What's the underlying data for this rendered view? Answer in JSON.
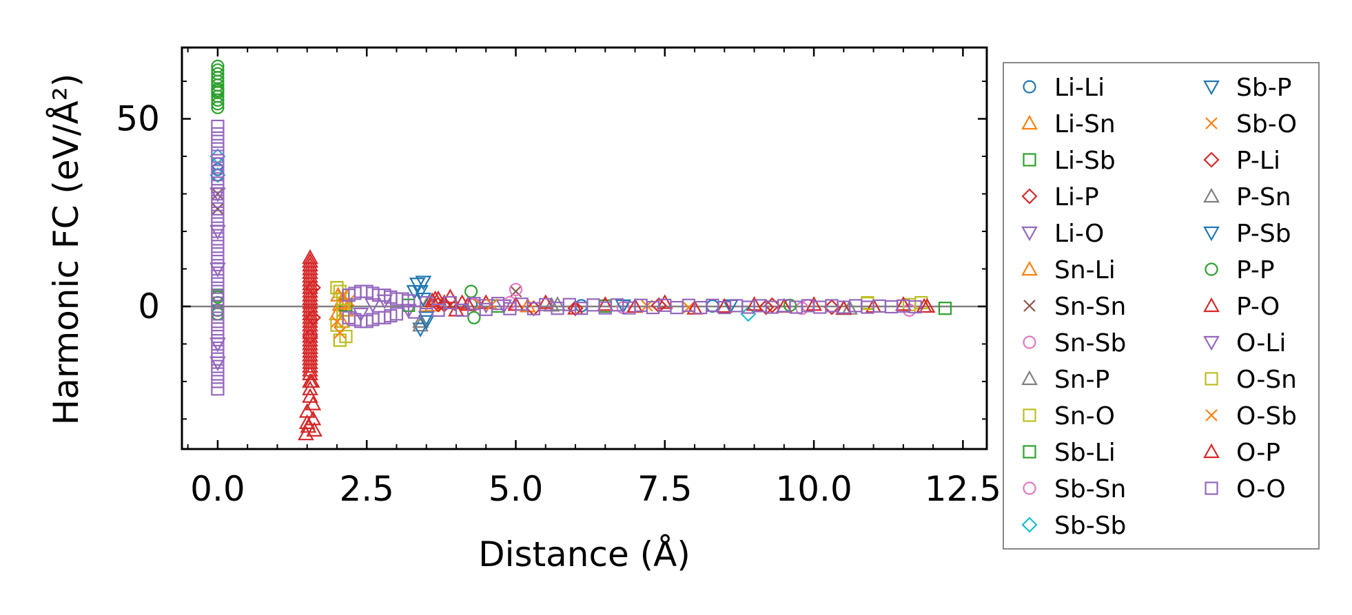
{
  "chart_data": {
    "type": "scatter",
    "title": "",
    "xlabel": "Distance (Å)",
    "ylabel": "Harmonic FC (eV/Å²)",
    "xlim": [
      -0.6,
      12.9
    ],
    "ylim": [
      -38,
      69
    ],
    "x_ticks": [
      0.0,
      2.5,
      5.0,
      7.5,
      10.0,
      12.5
    ],
    "x_tick_labels": [
      "0.0",
      "2.5",
      "5.0",
      "7.5",
      "10.0",
      "12.5"
    ],
    "y_ticks": [
      0,
      50
    ],
    "y_tick_labels": [
      "0",
      "50"
    ],
    "reference_line_y": 0,
    "legend_position": "outside-right",
    "series": [
      {
        "name": "Li-Li",
        "marker": "circle",
        "color": "#1f77b4",
        "x": [
          0.0,
          0.0,
          0.0,
          4.25,
          6.1,
          8.3
        ],
        "y": [
          38.0,
          35.0,
          36.5,
          0.5,
          0.2,
          0.1
        ]
      },
      {
        "name": "Li-Sn",
        "marker": "triangle-up",
        "color": "#ff7f0e",
        "x": [
          2.0,
          2.05,
          2.1,
          2.15,
          3.6,
          5.2
        ],
        "y": [
          -2.0,
          0.5,
          2.0,
          -1.0,
          0.3,
          0.1
        ]
      },
      {
        "name": "Li-Sb",
        "marker": "square",
        "color": "#2ca02c",
        "x": [
          12.2,
          0.0,
          2.15,
          4.7
        ],
        "y": [
          -0.5,
          2.0,
          0.4,
          0.1
        ]
      },
      {
        "name": "Li-P",
        "marker": "diamond",
        "color": "#d62728",
        "x": [
          1.6,
          1.55,
          3.7,
          5.3,
          7.4,
          9.2
        ],
        "y": [
          5.0,
          -8.0,
          0.5,
          -0.5,
          0.3,
          -0.2
        ]
      },
      {
        "name": "Li-O",
        "marker": "triangle-down",
        "color": "#9467bd",
        "x": [
          0.0,
          0.0,
          2.6,
          3.2,
          4.8
        ],
        "y": [
          30.0,
          -15.0,
          0.5,
          -1.0,
          0.2
        ]
      },
      {
        "name": "Sn-Li",
        "marker": "triangle-up",
        "color": "#ff7f0e",
        "x": [
          2.02,
          2.08,
          2.12,
          3.5
        ],
        "y": [
          3.0,
          -4.0,
          1.0,
          0.2
        ]
      },
      {
        "name": "Sn-Sn",
        "marker": "x",
        "color": "#8c564b",
        "x": [
          0.0,
          0.0,
          5.0,
          3.9
        ],
        "y": [
          30.0,
          26.0,
          4.0,
          0.3
        ]
      },
      {
        "name": "Sn-Sb",
        "marker": "circle",
        "color": "#e377c2",
        "x": [
          5.0,
          4.9,
          9.8,
          11.6
        ],
        "y": [
          4.5,
          1.0,
          -0.5,
          -1.0
        ]
      },
      {
        "name": "Sn-P",
        "marker": "triangle-up",
        "color": "#7f7f7f",
        "x": [
          3.4,
          5.7,
          10.6
        ],
        "y": [
          -5.0,
          0.5,
          -0.5
        ]
      },
      {
        "name": "Sn-O",
        "marker": "square",
        "color": "#bcbd22",
        "x": [
          2.0,
          2.05,
          2.1,
          10.9,
          11.6,
          11.8
        ],
        "y": [
          5.0,
          -9.0,
          -4.0,
          1.0,
          0.5,
          1.0
        ]
      },
      {
        "name": "Sb-Li",
        "marker": "square",
        "color": "#2ca02c",
        "x": [
          0.0,
          3.2,
          6.5
        ],
        "y": [
          3.0,
          0.3,
          0.1
        ]
      },
      {
        "name": "Sb-Sn",
        "marker": "circle",
        "color": "#e377c2",
        "x": [
          4.3,
          6.8,
          9.9
        ],
        "y": [
          0.5,
          -0.3,
          0.2
        ]
      },
      {
        "name": "Sb-Sb",
        "marker": "diamond",
        "color": "#17becf",
        "x": [
          0.0,
          0.0,
          8.9
        ],
        "y": [
          35.0,
          40.0,
          -2.0
        ]
      },
      {
        "name": "Sb-P",
        "marker": "triangle-down",
        "color": "#1f77b4",
        "x": [
          3.35,
          3.4,
          3.45,
          3.5,
          3.4,
          6.8
        ],
        "y": [
          6.0,
          4.0,
          2.0,
          -3.0,
          -6.0,
          0.2
        ]
      },
      {
        "name": "Sb-O",
        "marker": "x",
        "color": "#ff7f0e",
        "x": [
          2.2,
          4.4,
          7.9
        ],
        "y": [
          1.5,
          0.5,
          -0.3
        ]
      },
      {
        "name": "P-Li",
        "marker": "diamond",
        "color": "#d62728",
        "x": [
          1.6,
          3.8,
          6.0,
          9.3,
          10.3
        ],
        "y": [
          -3.0,
          0.5,
          -0.5,
          0.3,
          -0.2
        ]
      },
      {
        "name": "P-Sn",
        "marker": "triangle-up",
        "color": "#7f7f7f",
        "x": [
          3.4,
          5.6,
          10.5
        ],
        "y": [
          -4.0,
          0.3,
          -0.6
        ]
      },
      {
        "name": "P-Sb",
        "marker": "triangle-down",
        "color": "#1f77b4",
        "x": [
          3.3,
          3.5,
          3.45,
          8.6
        ],
        "y": [
          4.0,
          -4.0,
          6.5,
          0.2
        ]
      },
      {
        "name": "P-P",
        "marker": "circle",
        "color": "#2ca02c",
        "x": [
          0.0,
          0.0,
          0.0,
          0.0,
          0.0,
          0.0,
          0.0,
          0.0,
          0.0,
          0.0,
          0.0,
          0.0,
          0.0,
          0.0,
          0.0,
          0.0,
          0.0,
          0.0,
          4.25,
          4.3,
          9.6
        ],
        "y": [
          64.0,
          63.0,
          62.0,
          61.0,
          60.0,
          59.0,
          58.0,
          57.5,
          57.0,
          56.0,
          55.0,
          54.0,
          53.0,
          3.0,
          1.0,
          -1.0,
          -2.0,
          2.5,
          4.0,
          -3.0,
          0.3
        ]
      },
      {
        "name": "P-O",
        "marker": "triangle-up",
        "color": "#d62728",
        "x": [
          1.55,
          1.55,
          1.55,
          1.55,
          1.55,
          1.55,
          1.55,
          1.55,
          1.55,
          1.55,
          1.55,
          1.55,
          1.55,
          1.55,
          1.55,
          1.55,
          1.55,
          1.55,
          1.55,
          1.55,
          1.55,
          1.55,
          1.55,
          1.55,
          1.55,
          1.55,
          1.55,
          1.55,
          1.55,
          1.55,
          1.55,
          1.55,
          1.55,
          1.55,
          1.55,
          1.6,
          1.5,
          1.6,
          1.5,
          1.62,
          1.48,
          3.6,
          3.7,
          3.8,
          3.9,
          4.0,
          4.1,
          4.2,
          4.5,
          5.0,
          5.5,
          6.0,
          6.5,
          7.0,
          7.5,
          8.0,
          8.5,
          9.0,
          9.5,
          10.0,
          10.5,
          11.0,
          11.5,
          11.9
        ],
        "y": [
          13.0,
          12.0,
          11.0,
          10.0,
          9.0,
          8.0,
          7.0,
          6.0,
          5.0,
          4.0,
          3.0,
          2.0,
          1.0,
          0.0,
          -1.0,
          -2.0,
          -3.0,
          -4.0,
          -5.0,
          -6.0,
          -7.0,
          -8.0,
          -9.0,
          -10.0,
          -11.0,
          -12.0,
          -13.0,
          -14.0,
          -15.0,
          -16.0,
          -17.0,
          -18.0,
          -20.0,
          -22.0,
          -24.0,
          -26.0,
          -28.0,
          -30.0,
          -31.0,
          -33.0,
          -34.0,
          1.5,
          2.0,
          1.0,
          2.5,
          -1.0,
          1.0,
          0.5,
          1.0,
          0.5,
          1.0,
          -0.5,
          0.5,
          0.0,
          1.0,
          -0.5,
          0.0,
          0.5,
          0.0,
          0.5,
          -0.5,
          0.0,
          0.5,
          0.0
        ]
      },
      {
        "name": "O-Li",
        "marker": "triangle-down",
        "color": "#9467bd",
        "x": [
          0.0,
          0.0,
          0.0,
          2.4,
          2.8,
          4.5
        ],
        "y": [
          20.0,
          10.0,
          -10.0,
          -2.0,
          1.5,
          0.3
        ]
      },
      {
        "name": "O-Sn",
        "marker": "square",
        "color": "#bcbd22",
        "x": [
          2.0,
          2.05,
          2.1,
          2.1,
          2.0,
          2.15,
          2.05,
          10.9
        ],
        "y": [
          5.0,
          4.0,
          2.0,
          -1.0,
          -5.0,
          -8.0,
          -9.0,
          0.8
        ]
      },
      {
        "name": "O-Sb",
        "marker": "x",
        "color": "#ff7f0e",
        "x": [
          2.1,
          2.0,
          2.05,
          4.6,
          7.2
        ],
        "y": [
          3.0,
          -4.0,
          -7.0,
          0.5,
          0.2
        ]
      },
      {
        "name": "O-P",
        "marker": "triangle-up",
        "color": "#d62728",
        "x": [
          1.55,
          1.58,
          1.52,
          3.65,
          11.85
        ],
        "y": [
          12.0,
          -20.0,
          -32.0,
          2.0,
          0.0
        ]
      },
      {
        "name": "O-O",
        "marker": "square",
        "color": "#9467bd",
        "x": [
          0.0,
          0.0,
          0.0,
          0.0,
          0.0,
          0.0,
          0.0,
          0.0,
          0.0,
          0.0,
          0.0,
          0.0,
          0.0,
          0.0,
          0.0,
          0.0,
          0.0,
          0.0,
          0.0,
          0.0,
          0.0,
          0.0,
          0.0,
          0.0,
          0.0,
          0.0,
          0.0,
          0.0,
          0.0,
          0.0,
          0.0,
          0.0,
          0.0,
          0.0,
          0.0,
          0.0,
          2.2,
          2.2,
          2.3,
          2.3,
          2.4,
          2.4,
          2.5,
          2.5,
          2.6,
          2.6,
          2.7,
          2.7,
          2.8,
          2.8,
          2.9,
          2.9,
          3.0,
          3.0,
          3.1,
          3.2,
          3.3,
          3.5,
          3.7,
          3.9,
          4.1,
          4.3,
          4.5,
          4.7,
          4.9,
          5.1,
          5.3,
          5.5,
          5.7,
          5.9,
          6.1,
          6.3,
          6.5,
          6.7,
          6.9,
          7.1,
          7.3,
          7.5,
          7.7,
          7.9,
          8.1,
          8.3,
          8.5,
          8.7,
          8.9,
          9.1,
          9.3,
          9.5,
          9.7,
          9.9,
          10.1,
          10.3,
          10.5,
          10.7,
          10.9,
          11.1,
          11.3,
          11.5,
          11.7
        ],
        "y": [
          48.0,
          46.0,
          44.0,
          42.0,
          40.0,
          38.0,
          36.0,
          34.0,
          32.0,
          30.0,
          28.0,
          26.0,
          24.0,
          22.0,
          20.0,
          18.0,
          16.0,
          14.0,
          12.0,
          10.0,
          8.0,
          6.0,
          4.0,
          2.0,
          0.0,
          -2.0,
          -4.0,
          -6.0,
          -8.0,
          -10.0,
          -12.0,
          -14.0,
          -16.0,
          -18.0,
          -20.0,
          -22.0,
          3.0,
          -3.0,
          3.5,
          -3.5,
          4.0,
          -4.0,
          4.0,
          -4.0,
          3.5,
          -3.5,
          3.0,
          -3.0,
          3.0,
          -3.0,
          2.5,
          -2.5,
          2.0,
          -2.0,
          2.0,
          1.5,
          -1.5,
          1.0,
          -1.0,
          1.0,
          -1.0,
          0.8,
          -0.8,
          0.8,
          -0.6,
          0.6,
          -0.6,
          0.5,
          -0.5,
          0.5,
          -0.5,
          0.4,
          -0.4,
          0.4,
          -0.4,
          0.3,
          -0.3,
          0.3,
          -0.3,
          0.3,
          -0.3,
          0.3,
          -0.3,
          0.2,
          -0.2,
          0.2,
          -0.2,
          0.2,
          -0.2,
          0.2,
          -0.2,
          0.2,
          -0.2,
          0.2,
          -0.2,
          0.1,
          -0.1,
          0.1,
          -0.1
        ]
      }
    ]
  }
}
